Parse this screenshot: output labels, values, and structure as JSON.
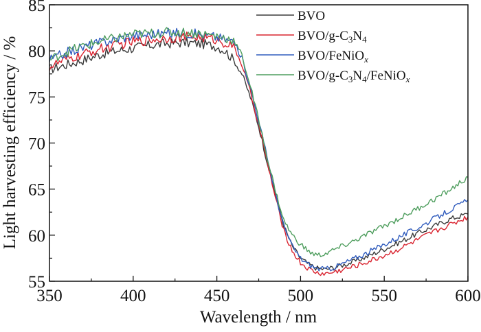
{
  "chart_data": {
    "type": "line",
    "title": "",
    "xlabel": "Wavelength / nm",
    "ylabel": "Light harvesting efficiency / %",
    "xlim": [
      350,
      600
    ],
    "ylim": [
      55,
      85
    ],
    "xticks": [
      350,
      400,
      450,
      500,
      550,
      600
    ],
    "yticks": [
      55,
      60,
      65,
      70,
      75,
      80,
      85
    ],
    "grid": false,
    "legend_position": "top-right",
    "series": [
      {
        "name": "BVO",
        "label_parts": [
          [
            "BVO",
            ""
          ]
        ],
        "color": "#3a3a3a",
        "points": [
          [
            350,
            78
          ],
          [
            360,
            78.5
          ],
          [
            370,
            79
          ],
          [
            380,
            79.6
          ],
          [
            390,
            80
          ],
          [
            400,
            80.3
          ],
          [
            410,
            80.6
          ],
          [
            420,
            80.8
          ],
          [
            430,
            80.9
          ],
          [
            440,
            80.8
          ],
          [
            450,
            80.5
          ],
          [
            455,
            80
          ],
          [
            460,
            79
          ],
          [
            465,
            77.5
          ],
          [
            470,
            75
          ],
          [
            475,
            71.8
          ],
          [
            480,
            68
          ],
          [
            485,
            64.5
          ],
          [
            490,
            61
          ],
          [
            495,
            58.8
          ],
          [
            500,
            57.5
          ],
          [
            505,
            56.8
          ],
          [
            510,
            56.4
          ],
          [
            515,
            56.3
          ],
          [
            520,
            56.5
          ],
          [
            530,
            57
          ],
          [
            540,
            57.7
          ],
          [
            550,
            58.5
          ],
          [
            560,
            59.3
          ],
          [
            570,
            60.2
          ],
          [
            580,
            61
          ],
          [
            590,
            61.8
          ],
          [
            600,
            62.3
          ]
        ]
      },
      {
        "name": "BVO/g-C3N4",
        "label_parts": [
          [
            "BVO/g-C",
            ""
          ],
          [
            "3",
            "sub"
          ],
          [
            "N",
            ""
          ],
          [
            "4",
            "sub"
          ]
        ],
        "color": "#d9232f",
        "points": [
          [
            350,
            78.3
          ],
          [
            360,
            79
          ],
          [
            370,
            79.6
          ],
          [
            380,
            80.2
          ],
          [
            390,
            80.6
          ],
          [
            400,
            81
          ],
          [
            410,
            81.2
          ],
          [
            420,
            81.4
          ],
          [
            430,
            81.5
          ],
          [
            440,
            81.5
          ],
          [
            450,
            81.2
          ],
          [
            460,
            80.5
          ],
          [
            465,
            78.5
          ],
          [
            470,
            75.5
          ],
          [
            475,
            72
          ],
          [
            480,
            68
          ],
          [
            485,
            64
          ],
          [
            490,
            60.5
          ],
          [
            495,
            58.3
          ],
          [
            500,
            57
          ],
          [
            505,
            56.3
          ],
          [
            510,
            55.9
          ],
          [
            515,
            55.8
          ],
          [
            520,
            56
          ],
          [
            530,
            56.5
          ],
          [
            540,
            57.1
          ],
          [
            550,
            57.8
          ],
          [
            560,
            58.6
          ],
          [
            570,
            59.5
          ],
          [
            580,
            60.4
          ],
          [
            590,
            61.2
          ],
          [
            600,
            62
          ]
        ]
      },
      {
        "name": "BVO/FeNiOx",
        "label_parts": [
          [
            "BVO/FeNiO",
            ""
          ],
          [
            "x",
            "sub-italic"
          ]
        ],
        "color": "#2f5bbd",
        "points": [
          [
            350,
            79
          ],
          [
            360,
            79.8
          ],
          [
            370,
            80.4
          ],
          [
            380,
            80.9
          ],
          [
            390,
            81.3
          ],
          [
            400,
            81.7
          ],
          [
            410,
            81.8
          ],
          [
            420,
            81.9
          ],
          [
            430,
            82
          ],
          [
            440,
            81.8
          ],
          [
            450,
            81.5
          ],
          [
            460,
            81
          ],
          [
            465,
            79.2
          ],
          [
            470,
            76
          ],
          [
            475,
            72.4
          ],
          [
            480,
            68.5
          ],
          [
            485,
            64.5
          ],
          [
            490,
            61
          ],
          [
            495,
            58.8
          ],
          [
            500,
            57.5
          ],
          [
            505,
            56.8
          ],
          [
            510,
            56.4
          ],
          [
            515,
            56.3
          ],
          [
            520,
            56.5
          ],
          [
            530,
            57.3
          ],
          [
            540,
            58.1
          ],
          [
            550,
            59
          ],
          [
            560,
            59.9
          ],
          [
            570,
            60.8
          ],
          [
            580,
            61.8
          ],
          [
            590,
            62.8
          ],
          [
            600,
            63.8
          ]
        ]
      },
      {
        "name": "BVO/g-C3N4/FeNiOx",
        "label_parts": [
          [
            "BVO/g-C",
            ""
          ],
          [
            "3",
            "sub"
          ],
          [
            "N",
            ""
          ],
          [
            "4",
            "sub"
          ],
          [
            "/FeNiO",
            ""
          ],
          [
            "x",
            "sub-italic"
          ]
        ],
        "color": "#4f9e5e",
        "points": [
          [
            350,
            79
          ],
          [
            360,
            79.9
          ],
          [
            370,
            80.5
          ],
          [
            380,
            81
          ],
          [
            390,
            81.4
          ],
          [
            400,
            81.8
          ],
          [
            410,
            81.9
          ],
          [
            420,
            82
          ],
          [
            430,
            82
          ],
          [
            440,
            81.9
          ],
          [
            450,
            81.6
          ],
          [
            460,
            81.2
          ],
          [
            465,
            79.5
          ],
          [
            470,
            76.2
          ],
          [
            475,
            72.5
          ],
          [
            480,
            68.5
          ],
          [
            485,
            64.8
          ],
          [
            490,
            61.6
          ],
          [
            495,
            60
          ],
          [
            500,
            59
          ],
          [
            505,
            58.2
          ],
          [
            510,
            57.8
          ],
          [
            515,
            58
          ],
          [
            520,
            58.4
          ],
          [
            530,
            59.2
          ],
          [
            540,
            60.1
          ],
          [
            550,
            61
          ],
          [
            560,
            61.9
          ],
          [
            570,
            62.9
          ],
          [
            580,
            63.9
          ],
          [
            590,
            65
          ],
          [
            600,
            66.3
          ]
        ]
      }
    ]
  }
}
